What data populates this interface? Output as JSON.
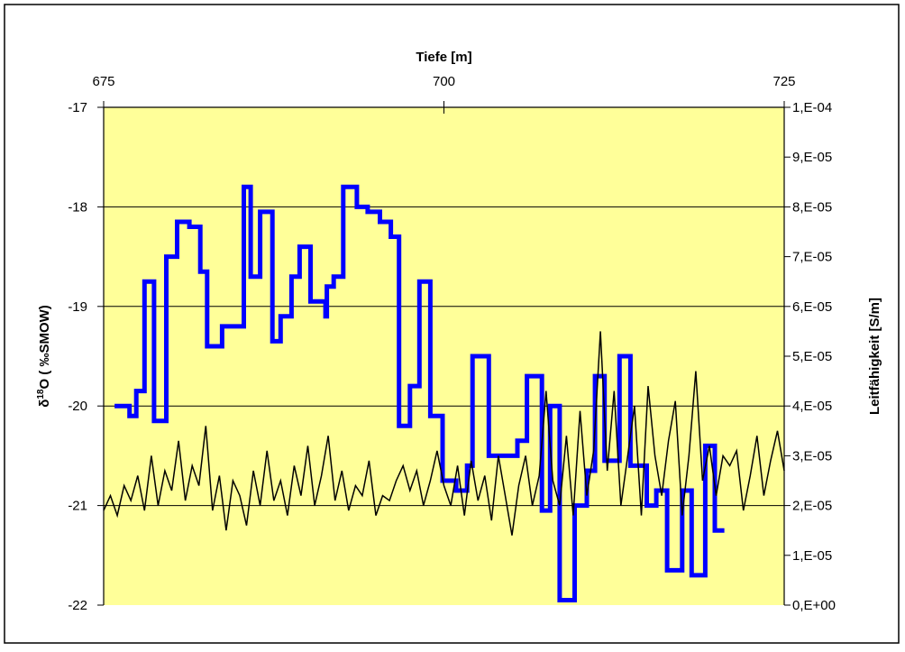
{
  "chart_data": {
    "type": "line",
    "title": "",
    "x_top_axis": {
      "label": "Tiefe [m]",
      "range": [
        675,
        725
      ],
      "ticks": [
        675,
        700,
        725
      ],
      "tick_labels": [
        "675",
        "700",
        "725"
      ]
    },
    "y_left_axis": {
      "label_main": "δ",
      "label_sup": "18",
      "label_rest": "O ( ‰SMOW)",
      "range": [
        -22,
        -17
      ],
      "ticks": [
        -22,
        -21,
        -20,
        -19,
        -18,
        -17
      ],
      "tick_labels": [
        "-22",
        "-21",
        "-20",
        "-19",
        "-18",
        "-17"
      ]
    },
    "y_right_axis": {
      "label": "Leitfähigkeit [S/m]",
      "range": [
        0,
        0.0001
      ],
      "ticks": [
        0,
        1e-05,
        2e-05,
        3e-05,
        4e-05,
        5e-05,
        6e-05,
        7e-05,
        8e-05,
        9e-05,
        0.0001
      ],
      "tick_labels": [
        "0,E+00",
        "1,E-05",
        "2,E-05",
        "3,E-05",
        "4,E-05",
        "5,E-05",
        "6,E-05",
        "7,E-05",
        "8,E-05",
        "9,E-05",
        "1,E-04"
      ]
    },
    "grid": true,
    "plot_background": "#ffff99",
    "series": [
      {
        "axis": "left",
        "style": "step",
        "color": "#0000ff",
        "points": [
          [
            675.8,
            -20.0
          ],
          [
            676.9,
            -20.1
          ],
          [
            677.4,
            -19.85
          ],
          [
            678.0,
            -18.75
          ],
          [
            678.7,
            -20.15
          ],
          [
            679.6,
            -18.5
          ],
          [
            680.4,
            -18.15
          ],
          [
            681.3,
            -18.2
          ],
          [
            682.1,
            -18.65
          ],
          [
            682.6,
            -19.4
          ],
          [
            683.7,
            -19.2
          ],
          [
            685.3,
            -17.8
          ],
          [
            685.8,
            -18.7
          ],
          [
            686.5,
            -18.05
          ],
          [
            687.4,
            -19.35
          ],
          [
            688.0,
            -19.1
          ],
          [
            688.8,
            -18.7
          ],
          [
            689.4,
            -18.4
          ],
          [
            690.2,
            -18.95
          ],
          [
            691.3,
            -19.1
          ],
          [
            691.4,
            -18.8
          ],
          [
            691.9,
            -18.7
          ],
          [
            692.6,
            -17.8
          ],
          [
            693.6,
            -18.0
          ],
          [
            694.4,
            -18.05
          ],
          [
            695.3,
            -18.15
          ],
          [
            696.1,
            -18.3
          ],
          [
            696.7,
            -20.2
          ],
          [
            697.5,
            -19.8
          ],
          [
            698.2,
            -18.75
          ],
          [
            699.0,
            -20.1
          ],
          [
            699.9,
            -20.75
          ],
          [
            700.9,
            -20.85
          ],
          [
            701.7,
            -20.6
          ],
          [
            702.1,
            -19.5
          ],
          [
            703.3,
            -20.5
          ],
          [
            705.4,
            -20.35
          ],
          [
            706.1,
            -19.7
          ],
          [
            707.2,
            -21.05
          ],
          [
            707.8,
            -20.0
          ],
          [
            708.5,
            -21.95
          ],
          [
            709.6,
            -21.0
          ],
          [
            710.5,
            -20.65
          ],
          [
            711.1,
            -19.7
          ],
          [
            711.8,
            -20.55
          ],
          [
            712.9,
            -19.5
          ],
          [
            713.7,
            -20.6
          ],
          [
            714.9,
            -21.0
          ],
          [
            715.6,
            -20.85
          ],
          [
            716.4,
            -21.65
          ],
          [
            717.5,
            -20.85
          ],
          [
            718.2,
            -21.7
          ],
          [
            719.2,
            -20.4
          ],
          [
            719.9,
            -21.25
          ],
          [
            720.6,
            -21.25
          ]
        ]
      },
      {
        "axis": "right",
        "style": "line",
        "color": "#000000",
        "points": [
          [
            675.0,
            1.9e-05
          ],
          [
            675.5,
            2.2e-05
          ],
          [
            676.0,
            1.8e-05
          ],
          [
            676.5,
            2.4e-05
          ],
          [
            677.0,
            2.1e-05
          ],
          [
            677.5,
            2.6e-05
          ],
          [
            678.0,
            1.9e-05
          ],
          [
            678.5,
            3e-05
          ],
          [
            679.0,
            2e-05
          ],
          [
            679.5,
            2.7e-05
          ],
          [
            680.0,
            2.3e-05
          ],
          [
            680.5,
            3.3e-05
          ],
          [
            681.0,
            2.1e-05
          ],
          [
            681.5,
            2.8e-05
          ],
          [
            682.0,
            2.4e-05
          ],
          [
            682.5,
            3.6e-05
          ],
          [
            683.0,
            1.9e-05
          ],
          [
            683.5,
            2.6e-05
          ],
          [
            684.0,
            1.5e-05
          ],
          [
            684.5,
            2.5e-05
          ],
          [
            685.0,
            2.2e-05
          ],
          [
            685.5,
            1.6e-05
          ],
          [
            686.0,
            2.7e-05
          ],
          [
            686.5,
            2e-05
          ],
          [
            687.0,
            3.1e-05
          ],
          [
            687.5,
            2.1e-05
          ],
          [
            688.0,
            2.5e-05
          ],
          [
            688.5,
            1.8e-05
          ],
          [
            689.0,
            2.8e-05
          ],
          [
            689.5,
            2.2e-05
          ],
          [
            690.0,
            3.2e-05
          ],
          [
            690.5,
            2e-05
          ],
          [
            691.0,
            2.6e-05
          ],
          [
            691.5,
            3.4e-05
          ],
          [
            692.0,
            2.1e-05
          ],
          [
            692.5,
            2.7e-05
          ],
          [
            693.0,
            1.9e-05
          ],
          [
            693.5,
            2.4e-05
          ],
          [
            694.0,
            2.2e-05
          ],
          [
            694.5,
            2.9e-05
          ],
          [
            695.0,
            1.8e-05
          ],
          [
            695.5,
            2.2e-05
          ],
          [
            696.0,
            2.1e-05
          ],
          [
            696.5,
            2.5e-05
          ],
          [
            697.0,
            2.8e-05
          ],
          [
            697.5,
            2.3e-05
          ],
          [
            698.0,
            2.7e-05
          ],
          [
            698.5,
            2e-05
          ],
          [
            699.0,
            2.5e-05
          ],
          [
            699.5,
            3.1e-05
          ],
          [
            700.0,
            2.4e-05
          ],
          [
            700.5,
            2e-05
          ],
          [
            701.0,
            2.8e-05
          ],
          [
            701.5,
            1.8e-05
          ],
          [
            702.0,
            2.9e-05
          ],
          [
            702.5,
            2.1e-05
          ],
          [
            703.0,
            2.6e-05
          ],
          [
            703.5,
            1.7e-05
          ],
          [
            704.0,
            3e-05
          ],
          [
            704.5,
            2.2e-05
          ],
          [
            705.0,
            1.4e-05
          ],
          [
            705.5,
            2.4e-05
          ],
          [
            706.0,
            3e-05
          ],
          [
            706.5,
            2e-05
          ],
          [
            707.0,
            2.6e-05
          ],
          [
            707.5,
            4.3e-05
          ],
          [
            708.0,
            2.5e-05
          ],
          [
            708.5,
            2e-05
          ],
          [
            709.0,
            3.4e-05
          ],
          [
            709.5,
            1.8e-05
          ],
          [
            710.0,
            3.9e-05
          ],
          [
            710.5,
            2.2e-05
          ],
          [
            711.0,
            3.1e-05
          ],
          [
            711.5,
            5.5e-05
          ],
          [
            712.0,
            2.7e-05
          ],
          [
            712.5,
            4.3e-05
          ],
          [
            713.0,
            2e-05
          ],
          [
            713.5,
            3e-05
          ],
          [
            714.0,
            4e-05
          ],
          [
            714.5,
            1.8e-05
          ],
          [
            715.0,
            4.4e-05
          ],
          [
            715.5,
            3e-05
          ],
          [
            716.0,
            2.2e-05
          ],
          [
            716.5,
            3.3e-05
          ],
          [
            717.0,
            4.1e-05
          ],
          [
            717.5,
            1.8e-05
          ],
          [
            718.0,
            3e-05
          ],
          [
            718.5,
            4.7e-05
          ],
          [
            719.0,
            2.5e-05
          ],
          [
            719.5,
            3.2e-05
          ],
          [
            720.0,
            2.2e-05
          ],
          [
            720.5,
            3e-05
          ],
          [
            721.0,
            2.8e-05
          ],
          [
            721.5,
            3.1e-05
          ],
          [
            722.0,
            1.9e-05
          ],
          [
            722.5,
            2.6e-05
          ],
          [
            723.0,
            3.4e-05
          ],
          [
            723.5,
            2.2e-05
          ],
          [
            724.0,
            2.9e-05
          ],
          [
            724.5,
            3.5e-05
          ],
          [
            725.0,
            2.7e-05
          ]
        ]
      }
    ]
  }
}
